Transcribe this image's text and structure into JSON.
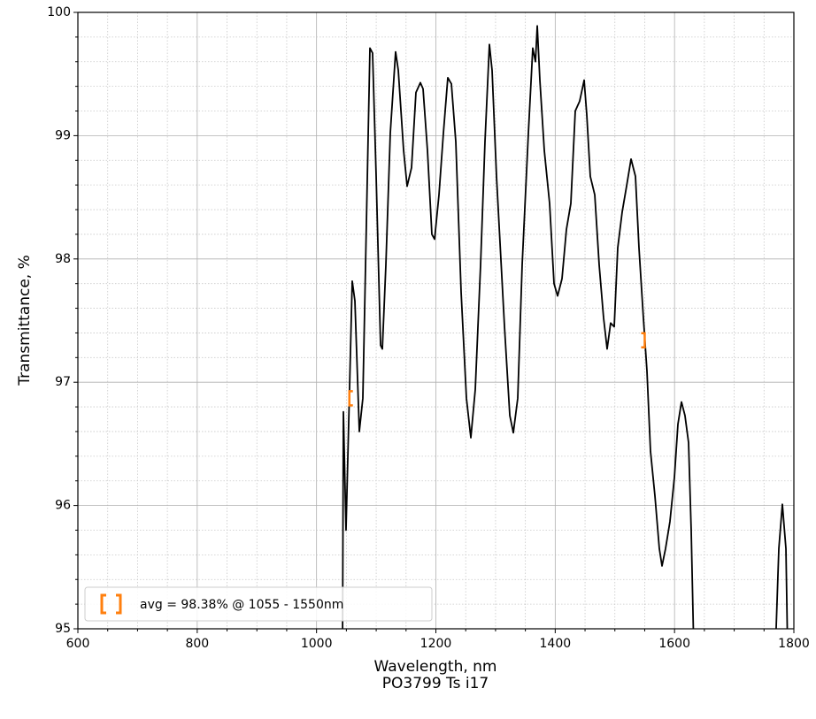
{
  "chart_data": {
    "type": "line",
    "title": "PO3799 Ts i17",
    "xlabel": "Wavelength, nm",
    "ylabel": "Transmittance, %",
    "xlim": [
      600,
      1800
    ],
    "ylim": [
      95,
      100
    ],
    "xticks": [
      600,
      800,
      1000,
      1200,
      1400,
      1600,
      1800
    ],
    "yticks": [
      95,
      96,
      97,
      98,
      99,
      100
    ],
    "xminorticks": [
      650,
      700,
      750,
      850,
      900,
      950,
      1050,
      1100,
      1150,
      1250,
      1300,
      1350,
      1450,
      1500,
      1550,
      1650,
      1700,
      1750
    ],
    "yminorticks": [
      95.2,
      95.4,
      95.6,
      95.8,
      96.2,
      96.4,
      96.6,
      96.8,
      97.2,
      97.4,
      97.6,
      97.8,
      98.2,
      98.4,
      98.6,
      98.8,
      99.2,
      99.4,
      99.6,
      99.8
    ],
    "grid": true,
    "legend": "lower left",
    "series": [
      {
        "color": "#000000",
        "x": [
          1043.5,
          1045,
          1049.4,
          1059.8,
          1064.3,
          1071.7,
          1077.6,
          1089.5,
          1093.9,
          1099.9,
          1107.3,
          1110.3,
          1116.2,
          1123.6,
          1132.5,
          1137,
          1145.9,
          1151.8,
          1159.2,
          1166.6,
          1174,
          1178.5,
          1185.9,
          1193.3,
          1197.8,
          1205.2,
          1212.6,
          1220,
          1226,
          1233.4,
          1242.3,
          1251.2,
          1258.6,
          1266,
          1274.9,
          1282.3,
          1289.7,
          1294.2,
          1301.6,
          1315,
          1323.9,
          1329.8,
          1337.2,
          1344.6,
          1355,
          1362.4,
          1366.9,
          1369.9,
          1374.3,
          1381.7,
          1390.6,
          1398,
          1404,
          1411.4,
          1418.8,
          1426.2,
          1433.6,
          1441,
          1448.5,
          1452.9,
          1458.8,
          1466.3,
          1473.7,
          1481.1,
          1487,
          1492.9,
          1498.9,
          1504.8,
          1512.2,
          1519.6,
          1527.1,
          1534.5,
          1540.4,
          1547.8,
          1553.8,
          1559.7,
          1567.1,
          1574.5,
          1579,
          1584.9,
          1592.3,
          1599.8,
          1605.7,
          1611.6,
          1617.5,
          1623.5,
          1627.9,
          1632.4,
          1700,
          1768.9,
          1774.8,
          1780.7,
          1786.7,
          1789.6
        ],
        "values": [
          94.8,
          96.76,
          95.8,
          97.82,
          97.66,
          96.6,
          96.87,
          99.71,
          99.67,
          98.67,
          97.3,
          97.27,
          97.95,
          99.02,
          99.68,
          99.53,
          98.88,
          98.59,
          98.74,
          99.35,
          99.43,
          99.38,
          98.88,
          98.2,
          98.16,
          98.52,
          99.02,
          99.47,
          99.42,
          98.95,
          97.73,
          96.87,
          96.55,
          96.94,
          97.95,
          98.95,
          99.74,
          99.53,
          98.67,
          97.45,
          96.73,
          96.59,
          96.87,
          97.95,
          99.02,
          99.71,
          99.6,
          99.89,
          99.45,
          98.88,
          98.45,
          97.8,
          97.7,
          97.84,
          98.24,
          98.45,
          99.2,
          99.28,
          99.45,
          99.17,
          98.67,
          98.52,
          97.95,
          97.52,
          97.27,
          97.48,
          97.45,
          98.09,
          98.38,
          98.59,
          98.81,
          98.67,
          98.09,
          97.52,
          97.09,
          96.44,
          96.08,
          95.65,
          95.51,
          95.65,
          95.87,
          96.23,
          96.66,
          96.84,
          96.73,
          96.51,
          95.8,
          94.8,
          null,
          94.8,
          95.65,
          96.01,
          95.65,
          94.8
        ]
      },
      {
        "name": "avg = 98.38% @ 1055 - 1550nm",
        "color": "#ff7f0e",
        "marker": "bracket",
        "x": [
          1055,
          1550
        ],
        "values": [
          96.87,
          97.34
        ]
      }
    ]
  }
}
